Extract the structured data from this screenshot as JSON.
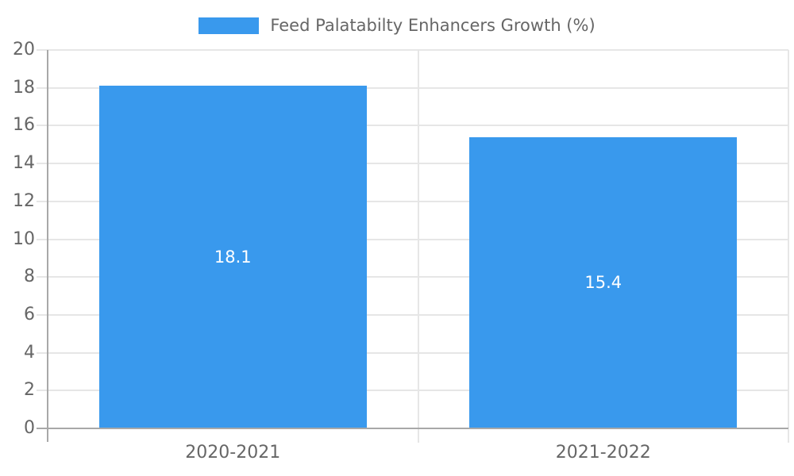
{
  "chart_data": {
    "type": "bar",
    "title": "",
    "xlabel": "",
    "ylabel": "",
    "categories": [
      "2020-2021",
      "2021-2022"
    ],
    "series": [
      {
        "name": "Feed Palatabilty Enhancers Growth (%)",
        "values": [
          18.1,
          15.4
        ]
      }
    ],
    "values": [
      18.1,
      15.4
    ],
    "bar_labels": [
      "18.1",
      "15.4"
    ],
    "ylim": [
      0,
      20
    ],
    "yticks": [
      0,
      2,
      4,
      6,
      8,
      10,
      12,
      14,
      16,
      18,
      20
    ],
    "grid": true,
    "legend_position": "top-center"
  },
  "legend": {
    "label": "Feed Palatabilty Enhancers Growth (%)"
  },
  "colors": {
    "bar": "#3999ed",
    "axis": "#a8a8a8",
    "grid": "#e6e6e6",
    "text": "#666666",
    "value_label": "#ffffff",
    "background": "#ffffff"
  }
}
